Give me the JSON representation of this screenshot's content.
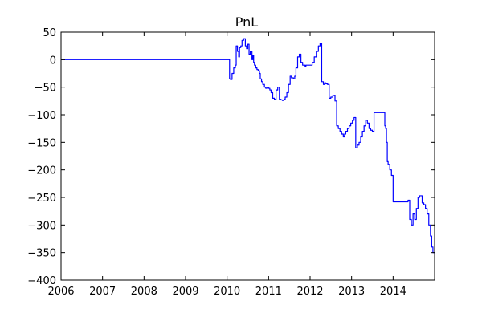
{
  "chart_data": {
    "type": "line",
    "title": "PnL",
    "xlabel": "",
    "ylabel": "",
    "x_unit": "year",
    "xlim": [
      2006,
      2015
    ],
    "ylim": [
      -400,
      50
    ],
    "x_ticks": [
      2006,
      2007,
      2008,
      2009,
      2010,
      2011,
      2012,
      2013,
      2014
    ],
    "x_tick_labels": [
      "2006",
      "2007",
      "2008",
      "2009",
      "2010",
      "2011",
      "2012",
      "2013",
      "2014"
    ],
    "y_ticks": [
      50,
      0,
      -50,
      -100,
      -150,
      -200,
      -250,
      -300,
      -350,
      -400
    ],
    "y_tick_labels": [
      "50",
      "0",
      "−50",
      "−100",
      "−150",
      "−200",
      "−250",
      "−300",
      "−350",
      "−400"
    ],
    "grid": false,
    "legend": "none",
    "series": [
      {
        "color": "#0000ff",
        "step": true,
        "x": [
          2006.0,
          2010.05,
          2010.06,
          2010.08,
          2010.12,
          2010.16,
          2010.2,
          2010.22,
          2010.25,
          2010.28,
          2010.3,
          2010.33,
          2010.36,
          2010.4,
          2010.44,
          2010.47,
          2010.5,
          2010.53,
          2010.56,
          2010.6,
          2010.62,
          2010.64,
          2010.66,
          2010.69,
          2010.72,
          2010.75,
          2010.78,
          2010.8,
          2010.83,
          2010.86,
          2010.9,
          2010.93,
          2010.96,
          2011.0,
          2011.03,
          2011.06,
          2011.1,
          2011.14,
          2011.18,
          2011.22,
          2011.26,
          2011.3,
          2011.33,
          2011.36,
          2011.38,
          2011.4,
          2011.44,
          2011.48,
          2011.52,
          2011.55,
          2011.6,
          2011.63,
          2011.66,
          2011.7,
          2011.74,
          2011.78,
          2011.82,
          2011.85,
          2011.88,
          2011.9,
          2011.92,
          2011.95,
          2012.0,
          2012.05,
          2012.1,
          2012.15,
          2012.2,
          2012.24,
          2012.28,
          2012.32,
          2012.35,
          2012.38,
          2012.42,
          2012.46,
          2012.5,
          2012.55,
          2012.6,
          2012.64,
          2012.68,
          2012.72,
          2012.76,
          2012.8,
          2012.83,
          2012.86,
          2012.9,
          2012.94,
          2012.98,
          2013.02,
          2013.06,
          2013.1,
          2013.14,
          2013.18,
          2013.22,
          2013.26,
          2013.3,
          2013.34,
          2013.38,
          2013.42,
          2013.46,
          2013.5,
          2013.54,
          2013.58,
          2013.62,
          2013.66,
          2013.7,
          2013.74,
          2013.78,
          2013.8,
          2013.82,
          2013.84,
          2013.86,
          2013.88,
          2013.92,
          2013.96,
          2014.0,
          2014.04,
          2014.1,
          2014.2,
          2014.3,
          2014.36,
          2014.4,
          2014.44,
          2014.48,
          2014.52,
          2014.56,
          2014.6,
          2014.64,
          2014.66,
          2014.7,
          2014.74,
          2014.78,
          2014.82,
          2014.86,
          2014.9,
          2014.93,
          2014.96,
          2014.98,
          2015.0
        ],
        "y": [
          0,
          0,
          -35,
          -36,
          -25,
          -15,
          -10,
          25,
          15,
          5,
          22,
          25,
          35,
          38,
          25,
          20,
          28,
          10,
          15,
          0,
          8,
          -5,
          -10,
          -15,
          -18,
          -20,
          -25,
          -35,
          -40,
          -45,
          -50,
          -52,
          -50,
          -52,
          -55,
          -60,
          -70,
          -72,
          -55,
          -50,
          -72,
          -73,
          -74,
          -73,
          -72,
          -68,
          -60,
          -45,
          -30,
          -33,
          -35,
          -30,
          -15,
          5,
          10,
          -5,
          -10,
          -10,
          -12,
          -10,
          -10,
          -10,
          -10,
          -5,
          5,
          15,
          25,
          30,
          -40,
          -45,
          -42,
          -44,
          -45,
          -70,
          -68,
          -65,
          -75,
          -120,
          -125,
          -130,
          -135,
          -140,
          -135,
          -130,
          -125,
          -120,
          -115,
          -110,
          -105,
          -160,
          -155,
          -150,
          -140,
          -130,
          -120,
          -110,
          -115,
          -125,
          -128,
          -130,
          -96,
          -96,
          -96,
          -96,
          -96,
          -96,
          -96,
          -120,
          -125,
          -150,
          -185,
          -190,
          -200,
          -210,
          -258,
          -258,
          -258,
          -258,
          -258,
          -255,
          -290,
          -300,
          -280,
          -290,
          -270,
          -250,
          -247,
          -247,
          -260,
          -263,
          -270,
          -280,
          -300,
          -320,
          -340,
          -350,
          -350,
          -350
        ]
      }
    ]
  }
}
